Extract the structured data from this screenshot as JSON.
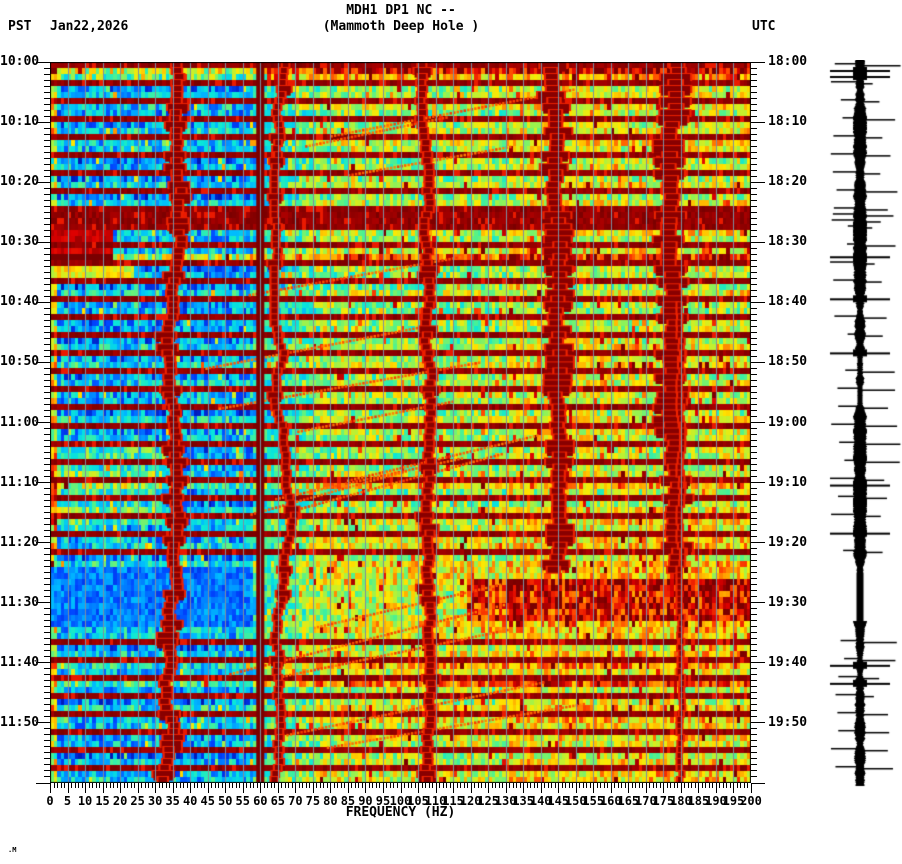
{
  "header": {
    "title_line1": "MDH1 DP1 NC --",
    "title_line2": "(Mammoth Deep Hole )",
    "timezone_left": "PST",
    "date": "Jan22,2026",
    "timezone_right": "UTC"
  },
  "footer": {
    "signature": ".M"
  },
  "chart_data": {
    "type": "heatmap",
    "subtype": "seismic-spectrogram",
    "title": "MDH1 DP1 NC -- (Mammoth Deep Hole )",
    "xlabel": "FREQUENCY (HZ)",
    "x_range_hz": [
      0,
      200
    ],
    "x_major_tick_step_hz": 5,
    "x_minor_tick_step_hz": 1,
    "x_tick_labels": [
      "0",
      "5",
      "10",
      "15",
      "20",
      "25",
      "30",
      "35",
      "40",
      "45",
      "50",
      "55",
      "60",
      "65",
      "70",
      "75",
      "80",
      "85",
      "90",
      "95",
      "100",
      "105",
      "110",
      "115",
      "120",
      "125",
      "130",
      "135",
      "140",
      "145",
      "150",
      "155",
      "160",
      "165",
      "170",
      "175",
      "180",
      "185",
      "190",
      "195",
      "200"
    ],
    "left_axis": {
      "timezone": "PST",
      "start": "10:00",
      "end": "12:00",
      "major_tick_minutes": 10,
      "minor_tick_minutes": 1,
      "tick_labels": [
        "10:00",
        "10:10",
        "10:20",
        "10:30",
        "10:40",
        "10:50",
        "11:00",
        "11:10",
        "11:20",
        "11:30",
        "11:40",
        "11:50"
      ]
    },
    "right_axis": {
      "timezone": "UTC",
      "start": "18:00",
      "end": "20:00",
      "major_tick_minutes": 10,
      "minor_tick_minutes": 1,
      "tick_labels": [
        "18:00",
        "18:10",
        "18:20",
        "18:30",
        "18:40",
        "18:50",
        "19:00",
        "19:10",
        "19:20",
        "19:30",
        "19:40",
        "19:50"
      ]
    },
    "colormap": "jet (blue=low power, dark red=high power)",
    "grid": "gray vertical gridlines every 5 Hz",
    "legend": "none",
    "features": [
      "broadband dark-red telemetry/clip bands roughly every 3 minutes",
      "strong persistent dark-red vertical line at 60 Hz (mains interference)",
      "thin persistent dark line near 180 Hz in the second hour",
      "wandering narrowband tonal traces near 35, 67, 106, 143 and 179 Hz",
      "upward-gliding red chirp streaks between ~40 and 130 Hz",
      "low-frequency (<20 Hz) dark-red energy burst around 10:27-10:34 PST",
      "pale quiet low-frequency interval around 11:24-11:33 PST",
      "hot (orange/red) band above ~120 Hz around 11:26-11:32 PST",
      "background cooler (blue/cyan) below ~55 Hz, warmer (yellow/orange) above ~130 Hz"
    ],
    "render_params": {
      "rows_minutes": 120,
      "cols_hz": 200,
      "gap_row_period_min": 3,
      "quiet_zone_minutes": [
        84,
        93
      ],
      "hot_right_minutes": [
        86,
        92
      ],
      "extra_gap_rows": [
        25,
        26
      ],
      "hot_rows": {
        "1": 0.3,
        "2": 0.15,
        "32": 0.25,
        "39": 0.2,
        "48": 0.22,
        "70": 0.18,
        "78": 0.2,
        "100": 0.15,
        "103": 0.18
      },
      "tracks": [
        {
          "f0": 36,
          "wander": 5.0,
          "halfw": 1.2,
          "blob": 0.2,
          "from": 0,
          "to": 120,
          "seed": 11
        },
        {
          "f0": 67,
          "wander": 3.0,
          "halfw": 0.8,
          "blob": 0.06,
          "from": 0,
          "to": 120,
          "seed": 22
        },
        {
          "f0": 106,
          "wander": 3.2,
          "halfw": 1.0,
          "blob": 0.12,
          "from": 0,
          "to": 120,
          "seed": 33
        },
        {
          "f0": 143,
          "wander": 2.5,
          "halfw": 1.6,
          "blob": 0.28,
          "from": 0,
          "to": 85,
          "seed": 44
        },
        {
          "f0": 179,
          "wander": 2.6,
          "halfw": 1.8,
          "blob": 0.28,
          "from": 0,
          "to": 85,
          "seed": 55
        },
        {
          "f0": 180,
          "wander": 0.5,
          "halfw": 0.45,
          "blob": 0.0,
          "from": 40,
          "to": 120,
          "seed": 66
        }
      ],
      "chirps": {
        "count": 16,
        "seed": 77,
        "fmin": 42,
        "fstart_span": 55,
        "len_min": 25,
        "len_span": 55,
        "rate_min": 6,
        "rate_span": 6
      },
      "seeds": {
        "rows": 101,
        "cells": 202,
        "wave": 303
      },
      "colormap_stops": [
        [
          0.0,
          "#000090"
        ],
        [
          0.14,
          "#0044ff"
        ],
        [
          0.27,
          "#00baff"
        ],
        [
          0.38,
          "#0ae8d8"
        ],
        [
          0.47,
          "#52f28c"
        ],
        [
          0.56,
          "#b0f23c"
        ],
        [
          0.65,
          "#ffe800"
        ],
        [
          0.74,
          "#ffa000"
        ],
        [
          0.82,
          "#ff4400"
        ],
        [
          0.9,
          "#dd0000"
        ],
        [
          1.0,
          "#7a0000"
        ]
      ],
      "gridline_color": "#7e8ea0",
      "mains_line_color": "#7a0000",
      "mains_line_hz": 60
    }
  },
  "waveform_panel": {
    "description": "clipped vertical seismogram amplitude trace with horizontal spikes at gap/event times",
    "color": "#000000"
  }
}
